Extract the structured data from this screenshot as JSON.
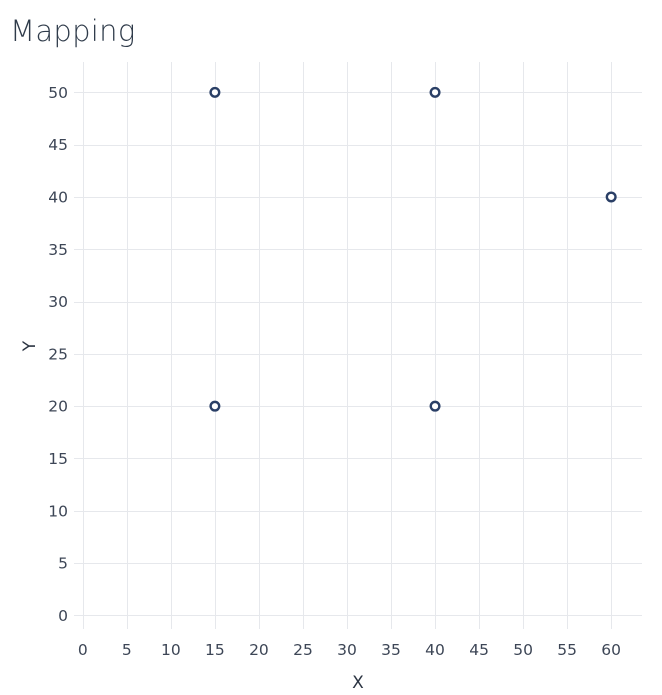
{
  "chart_data": {
    "type": "scatter",
    "title": "Mapping",
    "xlabel": "X",
    "ylabel": "Y",
    "xlim": [
      -1,
      63.5
    ],
    "ylim": [
      -1.3,
      52.9
    ],
    "xticks": [
      0,
      5,
      10,
      15,
      20,
      25,
      30,
      35,
      40,
      45,
      50,
      55,
      60
    ],
    "yticks": [
      0,
      5,
      10,
      15,
      20,
      25,
      30,
      35,
      40,
      45,
      50
    ],
    "grid": true,
    "legend": "none",
    "series": [
      {
        "points": [
          {
            "x": 15,
            "y": 50
          },
          {
            "x": 40,
            "y": 50
          },
          {
            "x": 60,
            "y": 40
          },
          {
            "x": 15,
            "y": 20
          },
          {
            "x": 40,
            "y": 20
          }
        ],
        "marker": "open-circle",
        "color": "#2a3f66"
      }
    ]
  }
}
